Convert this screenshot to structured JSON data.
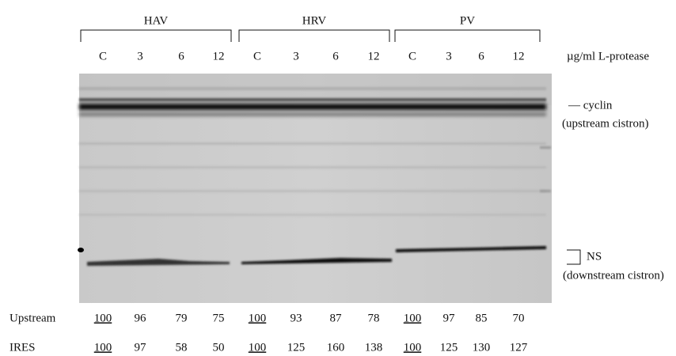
{
  "groups": [
    {
      "name": "HAV",
      "lanes": [
        "C",
        "3",
        "6",
        "12"
      ]
    },
    {
      "name": "HRV",
      "lanes": [
        "C",
        "3",
        "6",
        "12"
      ]
    },
    {
      "name": "PV",
      "lanes": [
        "C",
        "3",
        "6",
        "12"
      ]
    }
  ],
  "unit_label": "µg/ml L-protease",
  "markers": {
    "cyclin": "— cyclin",
    "cyclin_note": "(upstream cistron)",
    "ns": "NS",
    "ns_note": "(downstream cistron)"
  },
  "rows": [
    {
      "label": "Upstream",
      "values": [
        100,
        96,
        79,
        75,
        100,
        93,
        87,
        78,
        100,
        97,
        85,
        70
      ]
    },
    {
      "label": "IRES",
      "values": [
        100,
        97,
        58,
        50,
        100,
        125,
        160,
        138,
        100,
        125,
        130,
        127
      ]
    }
  ]
}
